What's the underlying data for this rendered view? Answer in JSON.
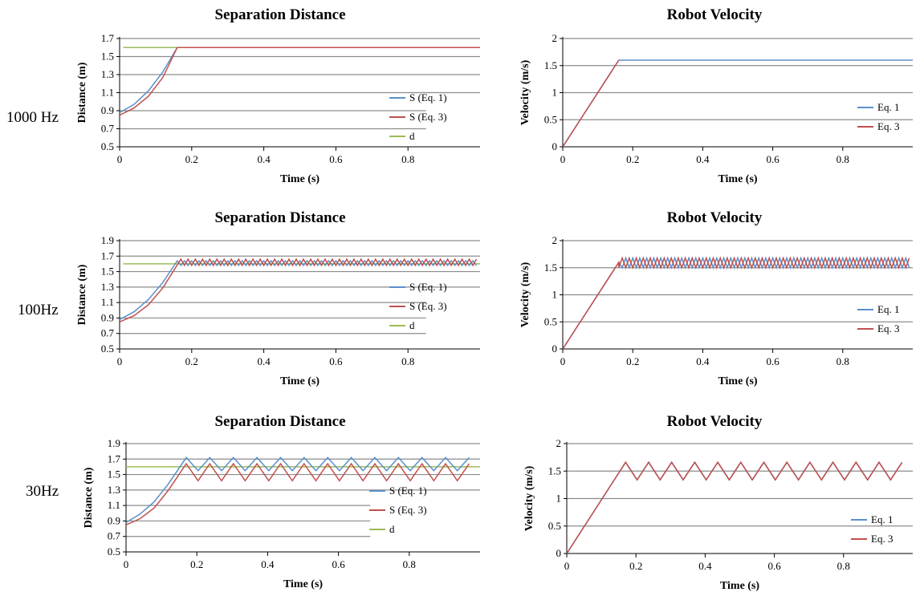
{
  "row_labels": [
    "1000 Hz",
    "100Hz",
    "30Hz"
  ],
  "colors": {
    "eq1": "#5b8fcb",
    "eq3": "#c0504d",
    "d": "#9bbb59",
    "grid": "#8c8c8c",
    "axis": "#000000"
  },
  "chart_data": [
    {
      "type": "line",
      "title": "Separation Distance",
      "xlabel": "Time (s)",
      "ylabel": "Distance (m)",
      "xlim": [
        0,
        1
      ],
      "ylim": [
        0.5,
        1.7
      ],
      "x_ticks": [
        "0",
        "0.2",
        "0.4",
        "0.6",
        "0.8"
      ],
      "y_ticks": [
        "0.5",
        "0.7",
        "0.9",
        "1.1",
        "1.3",
        "1.5",
        "1.7"
      ],
      "legend": [
        "S (Eq. 1)",
        "S (Eq. 3)",
        "d"
      ],
      "legend_position": "right",
      "series": [
        {
          "name": "S (Eq. 1)",
          "x": [
            0,
            0.04,
            0.08,
            0.12,
            0.16,
            1.0
          ],
          "y": [
            0.88,
            0.97,
            1.12,
            1.33,
            1.6,
            1.6
          ]
        },
        {
          "name": "S (Eq. 3)",
          "x": [
            0,
            0.04,
            0.08,
            0.12,
            0.16,
            1.0
          ],
          "y": [
            0.85,
            0.93,
            1.06,
            1.27,
            1.6,
            1.6
          ]
        },
        {
          "name": "d",
          "x": [
            0.01,
            1.0
          ],
          "y": [
            1.6,
            1.6
          ]
        }
      ]
    },
    {
      "type": "line",
      "title": "Robot Velocity",
      "xlabel": "Time (s)",
      "ylabel": "Velocity (m/s)",
      "xlim": [
        0,
        1
      ],
      "ylim": [
        0,
        2
      ],
      "x_ticks": [
        "0",
        "0.2",
        "0.4",
        "0.6",
        "0.8"
      ],
      "y_ticks": [
        "0",
        "0.5",
        "1",
        "1.5",
        "2"
      ],
      "legend": [
        "Eq. 1",
        "Eq. 3"
      ],
      "legend_position": "right",
      "series": [
        {
          "name": "Eq. 1",
          "x": [
            0,
            0.16,
            1.0
          ],
          "y": [
            0,
            1.6,
            1.6
          ]
        },
        {
          "name": "Eq. 3",
          "x": [
            0,
            0.16
          ],
          "y": [
            0,
            1.6
          ]
        }
      ]
    },
    {
      "type": "line",
      "title": "Separation Distance",
      "xlabel": "Time (s)",
      "ylabel": "Distance (m)",
      "xlim": [
        0,
        1
      ],
      "ylim": [
        0.5,
        1.9
      ],
      "x_ticks": [
        "0",
        "0.2",
        "0.4",
        "0.6",
        "0.8"
      ],
      "y_ticks": [
        "0.5",
        "0.7",
        "0.9",
        "1.1",
        "1.3",
        "1.5",
        "1.7",
        "1.9"
      ],
      "legend": [
        "S (Eq. 1)",
        "S (Eq. 3)",
        "d"
      ],
      "legend_position": "right",
      "series": [
        {
          "name": "S (Eq. 1)",
          "ramp": {
            "x": [
              0,
              0.04,
              0.08,
              0.12,
              0.16
            ],
            "y": [
              0.88,
              0.98,
              1.14,
              1.36,
              1.64
            ]
          },
          "oscillation": {
            "x_start": 0.16,
            "x_end": 0.99,
            "period": 0.02,
            "low": 1.58,
            "high": 1.64
          }
        },
        {
          "name": "S (Eq. 3)",
          "ramp": {
            "x": [
              0,
              0.04,
              0.08,
              0.12,
              0.17
            ],
            "y": [
              0.85,
              0.93,
              1.07,
              1.29,
              1.66
            ]
          },
          "oscillation": {
            "x_start": 0.17,
            "x_end": 0.99,
            "period": 0.02,
            "low": 1.58,
            "high": 1.66
          }
        },
        {
          "name": "d",
          "x": [
            0.01,
            1.0
          ],
          "y": [
            1.6,
            1.6
          ]
        }
      ]
    },
    {
      "type": "line",
      "title": "Robot Velocity",
      "xlabel": "Time (s)",
      "ylabel": "Velocity (m/s)",
      "xlim": [
        0,
        1
      ],
      "ylim": [
        0,
        2
      ],
      "x_ticks": [
        "0",
        "0.2",
        "0.4",
        "0.6",
        "0.8"
      ],
      "y_ticks": [
        "0",
        "0.5",
        "1",
        "1.5",
        "2"
      ],
      "legend": [
        "Eq. 1",
        "Eq. 3"
      ],
      "legend_position": "right",
      "series": [
        {
          "name": "Eq. 1",
          "ramp": {
            "x": [
              0,
              0.16
            ],
            "y": [
              0,
              1.6
            ]
          },
          "oscillation": {
            "x_start": 0.16,
            "x_end": 0.99,
            "period": 0.02,
            "low": 1.5,
            "high": 1.68,
            "phase": "high"
          }
        },
        {
          "name": "Eq. 3",
          "ramp": {
            "x": [
              0,
              0.16
            ],
            "y": [
              0,
              1.6
            ]
          },
          "oscillation": {
            "x_start": 0.16,
            "x_end": 0.99,
            "period": 0.02,
            "low": 1.5,
            "high": 1.68,
            "phase": "low"
          }
        }
      ]
    },
    {
      "type": "line",
      "title": "Separation Distance",
      "xlabel": "Time (s)",
      "ylabel": "Distance (m)",
      "xlim": [
        0,
        1
      ],
      "ylim": [
        0.5,
        1.9
      ],
      "x_ticks": [
        "0",
        "0.2",
        "0.4",
        "0.6",
        "0.8"
      ],
      "y_ticks": [
        "0.5",
        "0.7",
        "0.9",
        "1.1",
        "1.3",
        "1.5",
        "1.7",
        "1.9"
      ],
      "legend": [
        "S (Eq. 1)",
        "S (Eq. 3)",
        "d"
      ],
      "legend_position": "right",
      "series": [
        {
          "name": "S (Eq. 1)",
          "ramp": {
            "x": [
              0,
              0.04,
              0.08,
              0.12,
              0.17
            ],
            "y": [
              0.88,
              0.99,
              1.15,
              1.38,
              1.72
            ]
          },
          "oscillation": {
            "x_start": 0.17,
            "x_end": 0.975,
            "period": 0.0666,
            "low": 1.55,
            "high": 1.72
          }
        },
        {
          "name": "S (Eq. 3)",
          "ramp": {
            "x": [
              0,
              0.04,
              0.08,
              0.12,
              0.17
            ],
            "y": [
              0.85,
              0.93,
              1.07,
              1.3,
              1.64
            ]
          },
          "oscillation": {
            "x_start": 0.17,
            "x_end": 0.975,
            "period": 0.0666,
            "low": 1.42,
            "high": 1.64
          }
        },
        {
          "name": "d",
          "x": [
            0.0,
            1.0
          ],
          "y": [
            1.6,
            1.6
          ]
        }
      ]
    },
    {
      "type": "line",
      "title": "Robot Velocity",
      "xlabel": "Time (s)",
      "ylabel": "Velocity (m/s)",
      "xlim": [
        0,
        1
      ],
      "ylim": [
        0,
        2
      ],
      "x_ticks": [
        "0",
        "0.2",
        "0.4",
        "0.6",
        "0.8"
      ],
      "y_ticks": [
        "0",
        "0.5",
        "1",
        "1.5",
        "2"
      ],
      "legend": [
        "Eq. 1",
        "Eq. 3"
      ],
      "legend_position": "right",
      "series": [
        {
          "name": "Eq. 1",
          "ramp": {
            "x": [
              0,
              0.17
            ],
            "y": [
              0,
              1.66
            ]
          },
          "oscillation": {
            "x_start": 0.17,
            "x_end": 0.975,
            "period": 0.0666,
            "low": 1.34,
            "high": 1.66
          }
        },
        {
          "name": "Eq. 3",
          "ramp": {
            "x": [
              0,
              0.17
            ],
            "y": [
              0,
              1.66
            ]
          },
          "oscillation": {
            "x_start": 0.17,
            "x_end": 0.975,
            "period": 0.0666,
            "low": 1.34,
            "high": 1.66
          }
        }
      ]
    }
  ]
}
